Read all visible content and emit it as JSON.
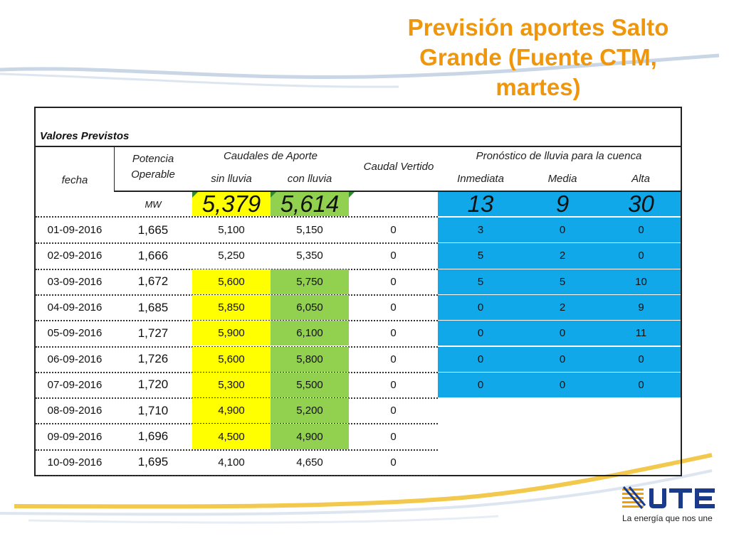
{
  "title": "Previsión aportes Salto Grande (Fuente CTM, martes)",
  "table": {
    "section_label": "Valores Previstos",
    "col_fecha": "fecha",
    "col_potencia": "Potencia Operable",
    "col_caudales_group": "Caudales de Aporte",
    "col_sin_lluvia": "sin lluvia",
    "col_con_lluvia": "con lluvia",
    "col_caudal_vertido": "Caudal Vertido",
    "col_pronostico_group": "Pronóstico de lluvia para la cuenca",
    "col_inmediata": "Inmediata",
    "col_media": "Media",
    "col_alta": "Alta",
    "units_potencia": "MW",
    "summary_sin_lluvia": "5,379",
    "summary_con_lluvia": "5,614",
    "summary_inmediata": "13",
    "summary_media": "9",
    "summary_alta": "30",
    "rows": [
      {
        "fecha": "01-09-2016",
        "potencia": "1,665",
        "sin": "5,100",
        "con": "5,150",
        "vertido": "0",
        "inm": "3",
        "media": "0",
        "alta": "0"
      },
      {
        "fecha": "02-09-2016",
        "potencia": "1,666",
        "sin": "5,250",
        "con": "5,350",
        "vertido": "0",
        "inm": "5",
        "media": "2",
        "alta": "0"
      },
      {
        "fecha": "03-09-2016",
        "potencia": "1,672",
        "sin": "5,600",
        "con": "5,750",
        "vertido": "0",
        "inm": "5",
        "media": "5",
        "alta": "10"
      },
      {
        "fecha": "04-09-2016",
        "potencia": "1,685",
        "sin": "5,850",
        "con": "6,050",
        "vertido": "0",
        "inm": "0",
        "media": "2",
        "alta": "9"
      },
      {
        "fecha": "05-09-2016",
        "potencia": "1,727",
        "sin": "5,900",
        "con": "6,100",
        "vertido": "0",
        "inm": "0",
        "media": "0",
        "alta": "11"
      },
      {
        "fecha": "06-09-2016",
        "potencia": "1,726",
        "sin": "5,600",
        "con": "5,800",
        "vertido": "0",
        "inm": "0",
        "media": "0",
        "alta": "0"
      },
      {
        "fecha": "07-09-2016",
        "potencia": "1,720",
        "sin": "5,300",
        "con": "5,500",
        "vertido": "0",
        "inm": "0",
        "media": "0",
        "alta": "0"
      },
      {
        "fecha": "08-09-2016",
        "potencia": "1,710",
        "sin": "4,900",
        "con": "5,200",
        "vertido": "0",
        "inm": "",
        "media": "",
        "alta": ""
      },
      {
        "fecha": "09-09-2016",
        "potencia": "1,696",
        "sin": "4,500",
        "con": "4,900",
        "vertido": "0",
        "inm": "",
        "media": "",
        "alta": ""
      },
      {
        "fecha": "10-09-2016",
        "potencia": "1,695",
        "sin": "4,100",
        "con": "4,650",
        "vertido": "0",
        "inm": "",
        "media": "",
        "alta": ""
      }
    ],
    "row_fill": [
      {
        "sin": "none",
        "con": "none",
        "rain": "#10a8e8"
      },
      {
        "sin": "none",
        "con": "none",
        "rain": "#10a8e8"
      },
      {
        "sin": "#ffff00",
        "con": "#92d050",
        "rain": "#10a8e8"
      },
      {
        "sin": "#ffff00",
        "con": "#92d050",
        "rain": "#10a8e8"
      },
      {
        "sin": "#ffff00",
        "con": "#92d050",
        "rain": "#10a8e8"
      },
      {
        "sin": "#ffff00",
        "con": "#92d050",
        "rain": "#10a8e8"
      },
      {
        "sin": "#ffff00",
        "con": "#92d050",
        "rain": "#10a8e8"
      },
      {
        "sin": "#ffff00",
        "con": "#92d050",
        "rain": "none"
      },
      {
        "sin": "#ffff00",
        "con": "#92d050",
        "rain": "none"
      },
      {
        "sin": "none",
        "con": "none",
        "rain": "none"
      }
    ]
  },
  "logo": {
    "icon": "ute-logo-icon",
    "tagline": "La energía que nos une",
    "brand_color": "#1a3b8c",
    "accent_color": "#f0a000"
  },
  "colors": {
    "title": "#f0960a",
    "yellow": "#ffff00",
    "green": "#92d050",
    "blue": "#10a8e8"
  }
}
